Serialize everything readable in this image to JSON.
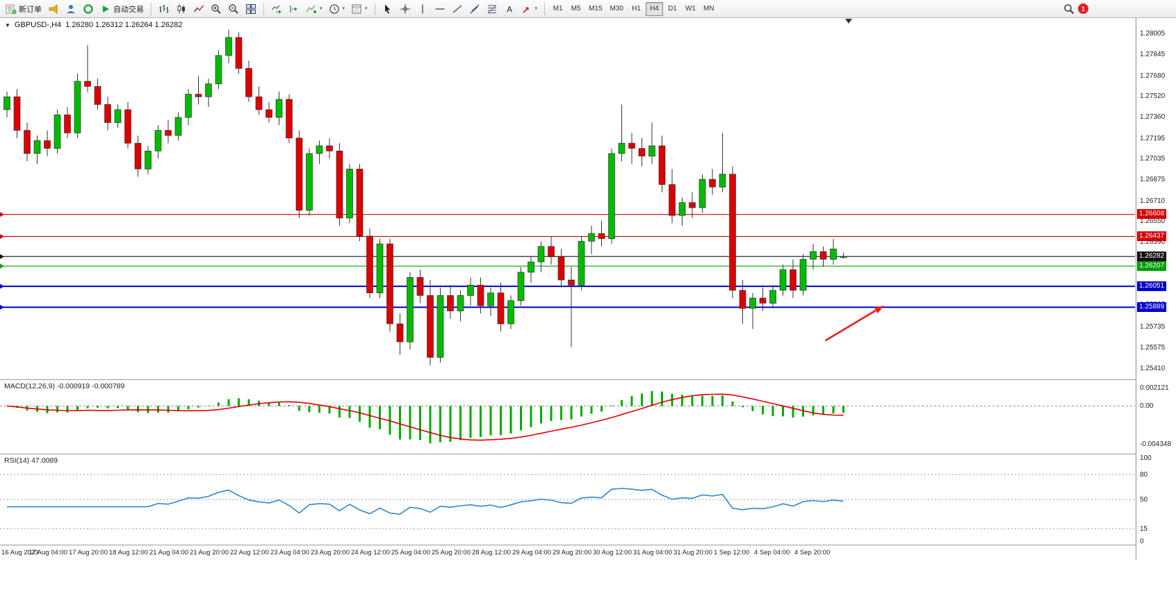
{
  "toolbar": {
    "new_order": "新订单",
    "auto_trading": "自动交易",
    "timeframe_labels": [
      "M1",
      "M5",
      "M15",
      "M30",
      "H1",
      "H4",
      "D1",
      "W1",
      "MN"
    ],
    "active_timeframe": "H4",
    "notification_count": "1"
  },
  "glyphs": {
    "dropdown_caret": "▾",
    "symbol_dropdown": "▼"
  },
  "chart": {
    "symbol_title": "GBPUSD-,H4",
    "ohlc": "1.26280 1.26312 1.26264 1.26282",
    "price_axis_labels": [
      "1.28005",
      "1.27845",
      "1.27680",
      "1.27520",
      "1.27360",
      "1.27195",
      "1.27035",
      "1.26875",
      "1.26710",
      "1.26550",
      "1.26390",
      "1.26230",
      "1.26065",
      "1.25905",
      "1.25735",
      "1.25575",
      "1.25410"
    ],
    "price_min": 1.2533,
    "price_max": 1.2813,
    "levels": [
      {
        "price": 1.26608,
        "label": "1.26608",
        "color": "#d40000",
        "thick": false
      },
      {
        "price": 1.26437,
        "label": "1.26437",
        "color": "#d40000",
        "thick": false
      },
      {
        "price": 1.26282,
        "label": "1.26282",
        "color": "#111111",
        "thick": false
      },
      {
        "price": 1.26207,
        "label": "1.26207",
        "color": "#00a000",
        "thick": false
      },
      {
        "price": 1.26051,
        "label": "1.26051",
        "color": "#0000cc",
        "thick": true
      },
      {
        "price": 1.25889,
        "label": "1.25889",
        "color": "#0000cc",
        "thick": true
      }
    ],
    "arrow_annotation": {
      "color": "#e02020",
      "x1_index": 81.2,
      "y1_price": 1.2563,
      "x2_index": 87.0,
      "y2_price": 1.259
    },
    "time_axis_labels": [
      "16 Aug 2023",
      "17 Aug 04:00",
      "17 Aug 20:00",
      "18 Aug 12:00",
      "21 Aug 04:00",
      "21 Aug 20:00",
      "22 Aug 12:00",
      "23 Aug 04:00",
      "23 Aug 20:00",
      "24 Aug 12:00",
      "25 Aug 04:00",
      "25 Aug 20:00",
      "28 Aug 12:00",
      "29 Aug 04:00",
      "29 Aug 20:00",
      "30 Aug 12:00",
      "31 Aug 04:00",
      "31 Aug 20:00",
      "1 Sep 12:00",
      "4 Sep 04:00",
      "4 Sep 20:00"
    ],
    "label_every_n_candles": 4
  },
  "macd_panel": {
    "label": "MACD(12,26,9) -0.000919 -0.000789",
    "axis_labels": [
      "0.002121",
      "0.00",
      "-0.004348"
    ],
    "scale_max": 0.003,
    "scale_min": -0.0055,
    "params": {
      "fast": 12,
      "slow": 26,
      "signal": 9
    }
  },
  "rsi_panel": {
    "label": "RSI(14) 47.0089",
    "axis_labels": [
      "100",
      "80",
      "50",
      "15",
      "0"
    ],
    "levels": [
      80,
      50,
      15
    ],
    "period": 14
  },
  "chart_data": {
    "type": "candlestick",
    "symbol": "GBPUSD",
    "timeframe": "H4",
    "colors": {
      "up": "#00bb00",
      "down": "#dd0000",
      "wick": "#333333",
      "macd_histogram": "#00aa00",
      "macd_signal": "#e00000",
      "rsi_line": "#2e86d0"
    },
    "candles": [
      [
        1.2742,
        1.2756,
        1.2736,
        1.2752
      ],
      [
        1.2752,
        1.2758,
        1.272,
        1.2726
      ],
      [
        1.2726,
        1.2732,
        1.2702,
        1.2708
      ],
      [
        1.2708,
        1.2722,
        1.27,
        1.2718
      ],
      [
        1.2718,
        1.2726,
        1.2706,
        1.2712
      ],
      [
        1.2712,
        1.2742,
        1.2708,
        1.2738
      ],
      [
        1.2738,
        1.2744,
        1.272,
        1.2724
      ],
      [
        1.2724,
        1.277,
        1.272,
        1.2764
      ],
      [
        1.2764,
        1.2792,
        1.2756,
        1.276
      ],
      [
        1.276,
        1.2766,
        1.2742,
        1.2746
      ],
      [
        1.2746,
        1.2752,
        1.2726,
        1.2732
      ],
      [
        1.2732,
        1.2746,
        1.2728,
        1.2742
      ],
      [
        1.2742,
        1.2748,
        1.2712,
        1.2716
      ],
      [
        1.2716,
        1.2722,
        1.269,
        1.2696
      ],
      [
        1.2696,
        1.2714,
        1.2692,
        1.271
      ],
      [
        1.271,
        1.273,
        1.2704,
        1.2726
      ],
      [
        1.2726,
        1.2734,
        1.2716,
        1.2722
      ],
      [
        1.2722,
        1.274,
        1.2718,
        1.2736
      ],
      [
        1.2736,
        1.2758,
        1.273,
        1.2754
      ],
      [
        1.2754,
        1.2768,
        1.2746,
        1.2752
      ],
      [
        1.2752,
        1.2766,
        1.2744,
        1.2762
      ],
      [
        1.2762,
        1.2788,
        1.2758,
        1.2784
      ],
      [
        1.2784,
        1.2804,
        1.2778,
        1.2798
      ],
      [
        1.2798,
        1.2802,
        1.277,
        1.2774
      ],
      [
        1.2774,
        1.278,
        1.2748,
        1.2752
      ],
      [
        1.2752,
        1.276,
        1.2738,
        1.2742
      ],
      [
        1.2742,
        1.2748,
        1.2732,
        1.2736
      ],
      [
        1.2736,
        1.2756,
        1.273,
        1.275
      ],
      [
        1.275,
        1.2754,
        1.2716,
        1.272
      ],
      [
        1.272,
        1.2726,
        1.2658,
        1.2664
      ],
      [
        1.2664,
        1.2712,
        1.266,
        1.2708
      ],
      [
        1.2708,
        1.2718,
        1.27,
        1.2714
      ],
      [
        1.2714,
        1.272,
        1.2704,
        1.271
      ],
      [
        1.271,
        1.2716,
        1.2652,
        1.2658
      ],
      [
        1.2658,
        1.27,
        1.2654,
        1.2696
      ],
      [
        1.2696,
        1.27,
        1.264,
        1.2644
      ],
      [
        1.2644,
        1.265,
        1.2596,
        1.26
      ],
      [
        1.26,
        1.2642,
        1.2596,
        1.2638
      ],
      [
        1.2638,
        1.2642,
        1.257,
        1.2576
      ],
      [
        1.2576,
        1.2584,
        1.2552,
        1.2562
      ],
      [
        1.2562,
        1.2616,
        1.2556,
        1.2612
      ],
      [
        1.2612,
        1.2618,
        1.2592,
        1.2598
      ],
      [
        1.2598,
        1.261,
        1.2544,
        1.255
      ],
      [
        1.255,
        1.2604,
        1.2546,
        1.2598
      ],
      [
        1.2598,
        1.2606,
        1.258,
        1.2586
      ],
      [
        1.2586,
        1.2602,
        1.2578,
        1.2598
      ],
      [
        1.2598,
        1.2612,
        1.259,
        1.2606
      ],
      [
        1.2606,
        1.2612,
        1.2584,
        1.259
      ],
      [
        1.259,
        1.2604,
        1.2582,
        1.26
      ],
      [
        1.26,
        1.2608,
        1.257,
        1.2576
      ],
      [
        1.2576,
        1.2598,
        1.2572,
        1.2594
      ],
      [
        1.2594,
        1.262,
        1.259,
        1.2616
      ],
      [
        1.2616,
        1.2628,
        1.2608,
        1.2624
      ],
      [
        1.2624,
        1.264,
        1.2616,
        1.2636
      ],
      [
        1.2636,
        1.2644,
        1.2622,
        1.2628
      ],
      [
        1.2628,
        1.2634,
        1.2604,
        1.261
      ],
      [
        1.261,
        1.262,
        1.2558,
        1.2606
      ],
      [
        1.2606,
        1.2644,
        1.2602,
        1.264
      ],
      [
        1.264,
        1.2652,
        1.263,
        1.2646
      ],
      [
        1.2646,
        1.2656,
        1.2636,
        1.2642
      ],
      [
        1.2642,
        1.2712,
        1.2638,
        1.2708
      ],
      [
        1.2708,
        1.2746,
        1.2702,
        1.2716
      ],
      [
        1.2716,
        1.2724,
        1.27,
        1.2712
      ],
      [
        1.2712,
        1.272,
        1.2698,
        1.2706
      ],
      [
        1.2706,
        1.2732,
        1.27,
        1.2714
      ],
      [
        1.2714,
        1.2722,
        1.2678,
        1.2684
      ],
      [
        1.2684,
        1.2696,
        1.2654,
        1.266
      ],
      [
        1.266,
        1.2674,
        1.2652,
        1.267
      ],
      [
        1.267,
        1.2678,
        1.2658,
        1.2666
      ],
      [
        1.2666,
        1.2692,
        1.2662,
        1.2688
      ],
      [
        1.2688,
        1.2696,
        1.2676,
        1.2682
      ],
      [
        1.2682,
        1.2724,
        1.2678,
        1.2692
      ],
      [
        1.2692,
        1.2698,
        1.2596,
        1.2602
      ],
      [
        1.2602,
        1.261,
        1.2576,
        1.2588
      ],
      [
        1.2588,
        1.26,
        1.2572,
        1.2596
      ],
      [
        1.2596,
        1.2604,
        1.2586,
        1.2592
      ],
      [
        1.2592,
        1.2606,
        1.2588,
        1.2602
      ],
      [
        1.2602,
        1.2622,
        1.2598,
        1.2618
      ],
      [
        1.2618,
        1.2626,
        1.2596,
        1.2602
      ],
      [
        1.2602,
        1.263,
        1.2598,
        1.2626
      ],
      [
        1.2626,
        1.2638,
        1.2618,
        1.2632
      ],
      [
        1.2632,
        1.2636,
        1.262,
        1.2626
      ],
      [
        1.2626,
        1.2642,
        1.2622,
        1.2634
      ],
      [
        1.2628,
        1.26312,
        1.26264,
        1.26282
      ]
    ]
  }
}
